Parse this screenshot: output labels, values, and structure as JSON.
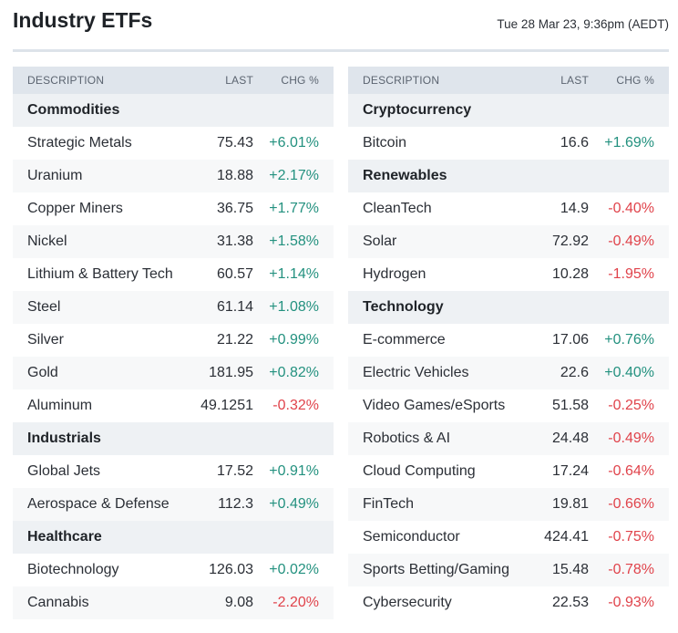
{
  "header": {
    "title": "Industry ETFs",
    "timestamp": "Tue 28 Mar 23, 9:36pm (AEDT)"
  },
  "columns": {
    "description": "DESCRIPTION",
    "last": "LAST",
    "chg": "CHG %"
  },
  "colors": {
    "positive": "#23917f",
    "negative": "#e0434b",
    "group_bg": "#eef1f4",
    "header_bg": "#dfe5ec"
  },
  "tables": [
    {
      "groups": [
        {
          "name": "Commodities",
          "rows": [
            {
              "desc": "Strategic Metals",
              "last": "75.43",
              "chg": "+6.01%"
            },
            {
              "desc": "Uranium",
              "last": "18.88",
              "chg": "+2.17%"
            },
            {
              "desc": "Copper Miners",
              "last": "36.75",
              "chg": "+1.77%"
            },
            {
              "desc": "Nickel",
              "last": "31.38",
              "chg": "+1.58%"
            },
            {
              "desc": "Lithium & Battery Tech",
              "last": "60.57",
              "chg": "+1.14%"
            },
            {
              "desc": "Steel",
              "last": "61.14",
              "chg": "+1.08%"
            },
            {
              "desc": "Silver",
              "last": "21.22",
              "chg": "+0.99%"
            },
            {
              "desc": "Gold",
              "last": "181.95",
              "chg": "+0.82%"
            },
            {
              "desc": "Aluminum",
              "last": "49.1251",
              "chg": "-0.32%"
            }
          ]
        },
        {
          "name": "Industrials",
          "rows": [
            {
              "desc": "Global Jets",
              "last": "17.52",
              "chg": "+0.91%"
            },
            {
              "desc": "Aerospace & Defense",
              "last": "112.3",
              "chg": "+0.49%"
            }
          ]
        },
        {
          "name": "Healthcare",
          "rows": [
            {
              "desc": "Biotechnology",
              "last": "126.03",
              "chg": "+0.02%"
            },
            {
              "desc": "Cannabis",
              "last": "9.08",
              "chg": "-2.20%"
            }
          ]
        }
      ]
    },
    {
      "groups": [
        {
          "name": "Cryptocurrency",
          "rows": [
            {
              "desc": "Bitcoin",
              "last": "16.6",
              "chg": "+1.69%"
            }
          ]
        },
        {
          "name": "Renewables",
          "rows": [
            {
              "desc": "CleanTech",
              "last": "14.9",
              "chg": "-0.40%"
            },
            {
              "desc": "Solar",
              "last": "72.92",
              "chg": "-0.49%"
            },
            {
              "desc": "Hydrogen",
              "last": "10.28",
              "chg": "-1.95%"
            }
          ]
        },
        {
          "name": "Technology",
          "rows": [
            {
              "desc": "E-commerce",
              "last": "17.06",
              "chg": "+0.76%"
            },
            {
              "desc": "Electric Vehicles",
              "last": "22.6",
              "chg": "+0.40%"
            },
            {
              "desc": "Video Games/eSports",
              "last": "51.58",
              "chg": "-0.25%"
            },
            {
              "desc": "Robotics & AI",
              "last": "24.48",
              "chg": "-0.49%"
            },
            {
              "desc": "Cloud Computing",
              "last": "17.24",
              "chg": "-0.64%"
            },
            {
              "desc": "FinTech",
              "last": "19.81",
              "chg": "-0.66%"
            },
            {
              "desc": "Semiconductor",
              "last": "424.41",
              "chg": "-0.75%"
            },
            {
              "desc": "Sports Betting/Gaming",
              "last": "15.48",
              "chg": "-0.78%"
            },
            {
              "desc": "Cybersecurity",
              "last": "22.53",
              "chg": "-0.93%"
            }
          ]
        }
      ]
    }
  ]
}
